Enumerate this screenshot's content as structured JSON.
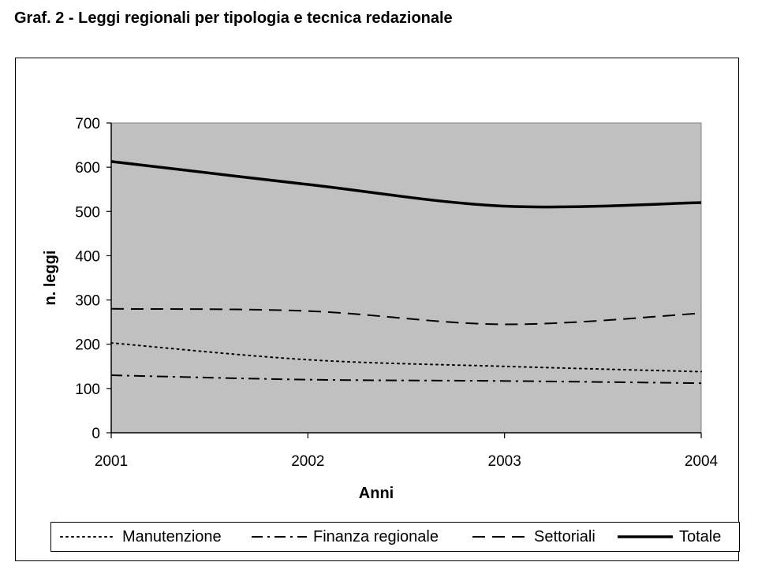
{
  "title": "Graf. 2 - Leggi regionali per tipologia e tecnica redazionale",
  "chart_data": {
    "type": "line",
    "categories": [
      "2001",
      "2002",
      "2003",
      "2004"
    ],
    "xlabel": "Anni",
    "ylabel": "n. leggi",
    "ylim": [
      0,
      700
    ],
    "yticks": [
      "0",
      "100",
      "200",
      "300",
      "400",
      "500",
      "600",
      "700"
    ],
    "grid": false,
    "plot_background": "#c0c0c0",
    "legend_position": "bottom",
    "series": [
      {
        "name": "Manutenzione",
        "values": [
          203,
          165,
          150,
          138
        ],
        "style": "dotted",
        "color": "#000000"
      },
      {
        "name": "Finanza regionale",
        "values": [
          130,
          120,
          117,
          112
        ],
        "style": "dash-dot",
        "color": "#000000"
      },
      {
        "name": "Settoriali",
        "values": [
          280,
          275,
          245,
          270
        ],
        "style": "dashed",
        "color": "#000000"
      },
      {
        "name": "Totale",
        "values": [
          613,
          561,
          512,
          520
        ],
        "style": "solid-thick",
        "color": "#000000"
      }
    ]
  }
}
